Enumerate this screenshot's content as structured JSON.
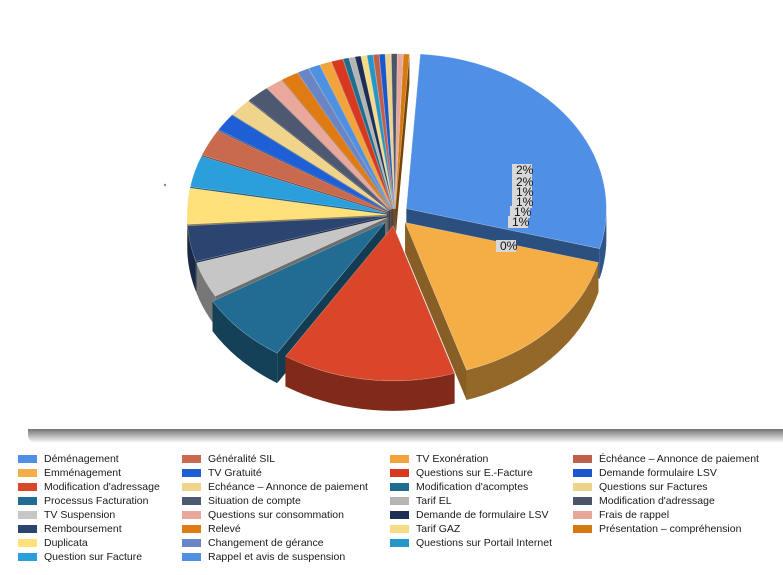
{
  "chart_data": {
    "type": "pie",
    "style": "3d-exploded",
    "series": [
      {
        "name": "Déménagement",
        "value": 30.0,
        "color": "#4f8fe6"
      },
      {
        "name": "Emménagement",
        "value": 17.0,
        "color": "#f5ad45"
      },
      {
        "name": "Modification d'adressage",
        "value": 15.0,
        "color": "#d9462a"
      },
      {
        "name": "Processus Facturation",
        "value": 8.0,
        "color": "#226c93"
      },
      {
        "name": "TV Suspension",
        "value": 4.0,
        "color": "#c6c6c6"
      },
      {
        "name": "Remboursement",
        "value": 4.0,
        "color": "#2c4470"
      },
      {
        "name": "Duplicata",
        "value": 4.0,
        "color": "#ffe07a"
      },
      {
        "name": "Question sur Facture",
        "value": 3.5,
        "color": "#2a9fdc"
      },
      {
        "name": "Généralité SIL",
        "value": 3.0,
        "color": "#c96a4e"
      },
      {
        "name": "TV Gratuité",
        "value": 2.0,
        "color": "#1f5fd6"
      },
      {
        "name": "Echéance – Annonce de paiement",
        "value": 2.0,
        "color": "#f1d48c"
      },
      {
        "name": "Situation de compte",
        "value": 2.0,
        "color": "#4e5870"
      },
      {
        "name": "Questions sur consommation",
        "value": 1.5,
        "color": "#eaa79b"
      },
      {
        "name": "Relevé",
        "value": 1.5,
        "color": "#e07a12"
      },
      {
        "name": "Changement de gérance",
        "value": 1.0,
        "color": "#6a85c4"
      },
      {
        "name": "Rappel et avis de suspension",
        "value": 1.0,
        "color": "#5090e0"
      },
      {
        "name": "TV Exonération",
        "value": 1.0,
        "color": "#f2a43a"
      },
      {
        "name": "Questions sur E.-Facture",
        "value": 1.0,
        "color": "#d7381f"
      },
      {
        "name": "Modification d'acomptes",
        "value": 0.5,
        "color": "#1e6d8c"
      },
      {
        "name": "Tarif EL",
        "value": 0.5,
        "color": "#b4b4b4"
      },
      {
        "name": "Demande de formulaire LSV",
        "value": 0.5,
        "color": "#1d2d55"
      },
      {
        "name": "Tarif GAZ",
        "value": 0.5,
        "color": "#f8dc85"
      },
      {
        "name": "Questions sur Portail Internet",
        "value": 0.5,
        "color": "#2596c8"
      },
      {
        "name": "Échéance – Annonce de paiement",
        "value": 0.5,
        "color": "#c0604a"
      },
      {
        "name": "Demande formulaire LSV",
        "value": 0.5,
        "color": "#1a56cc"
      },
      {
        "name": "Questions sur Factures",
        "value": 0.5,
        "color": "#eed38b"
      },
      {
        "name": "Modification d'adressage",
        "value": 0.5,
        "color": "#4b5568"
      },
      {
        "name": "Frais de rappel",
        "value": 0.5,
        "color": "#e7a69a"
      },
      {
        "name": "Présentation – compréhension",
        "value": 0.5,
        "color": "#d67a10"
      }
    ],
    "data_labels": [
      "2%",
      "2%",
      "1%",
      "1%",
      "1%",
      "1%",
      "0%"
    ],
    "legend_position": "bottom"
  },
  "legend_columns": [
    [
      {
        "label": "Déménagement",
        "color": "#4f8fe6"
      },
      {
        "label": "Emménagement",
        "color": "#f5ad45"
      },
      {
        "label": "Modification d'adressage",
        "color": "#d9462a"
      },
      {
        "label": "Processus Facturation",
        "color": "#226c93"
      },
      {
        "label": "TV Suspension",
        "color": "#c6c6c6"
      },
      {
        "label": "Remboursement",
        "color": "#2c4470"
      },
      {
        "label": "Duplicata",
        "color": "#ffe07a"
      },
      {
        "label": "Question sur Facture",
        "color": "#2a9fdc"
      }
    ],
    [
      {
        "label": "Généralité SIL",
        "color": "#c96a4e"
      },
      {
        "label": "TV Gratuité",
        "color": "#1f5fd6"
      },
      {
        "label": "Echéance – Annonce de paiement",
        "color": "#f1d48c"
      },
      {
        "label": "Situation de compte",
        "color": "#4e5870"
      },
      {
        "label": "Questions sur consommation",
        "color": "#eaa79b"
      },
      {
        "label": "Relevé",
        "color": "#e07a12"
      },
      {
        "label": "Changement de gérance",
        "color": "#6a85c4"
      },
      {
        "label": "Rappel et avis de suspension",
        "color": "#5090e0"
      }
    ],
    [
      {
        "label": "TV Exonération",
        "color": "#f2a43a"
      },
      {
        "label": "Questions sur E.-Facture",
        "color": "#d7381f"
      },
      {
        "label": "Modification d'acomptes",
        "color": "#1e6d8c"
      },
      {
        "label": "Tarif EL",
        "color": "#b4b4b4"
      },
      {
        "label": "Demande de formulaire LSV",
        "color": "#1d2d55"
      },
      {
        "label": "Tarif GAZ",
        "color": "#f8dc85"
      },
      {
        "label": "Questions sur Portail Internet",
        "color": "#2596c8"
      }
    ],
    [
      {
        "label": "Échéance – Annonce de paiement",
        "color": "#c0604a"
      },
      {
        "label": "Demande formulaire LSV",
        "color": "#1a56cc"
      },
      {
        "label": "Questions sur Factures",
        "color": "#eed38b"
      },
      {
        "label": "Modification d'adressage",
        "color": "#4b5568"
      },
      {
        "label": "Frais de rappel",
        "color": "#e7a69a"
      },
      {
        "label": "Présentation – compréhension",
        "color": "#d67a10"
      }
    ]
  ]
}
